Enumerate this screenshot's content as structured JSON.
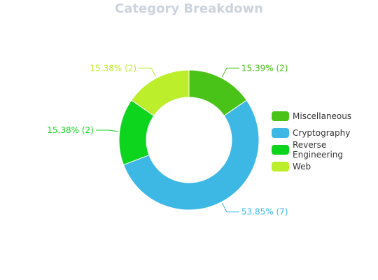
{
  "chart_data": {
    "type": "pie",
    "title": "Category Breakdown",
    "donut": true,
    "legend_position": "right",
    "slices": [
      {
        "name": "Miscellaneous",
        "value": 2,
        "label": "15.39% (2)",
        "color": "#4ac319"
      },
      {
        "name": "Cryptography",
        "value": 7,
        "label": "53.85% (7)",
        "color": "#3db8e5"
      },
      {
        "name": "Reverse Engineering",
        "value": 2,
        "label": "15.38% (2)",
        "color": "#0dd51d"
      },
      {
        "name": "Web",
        "value": 2,
        "label": "15.38% (2)",
        "color": "#bcee2b"
      }
    ]
  }
}
